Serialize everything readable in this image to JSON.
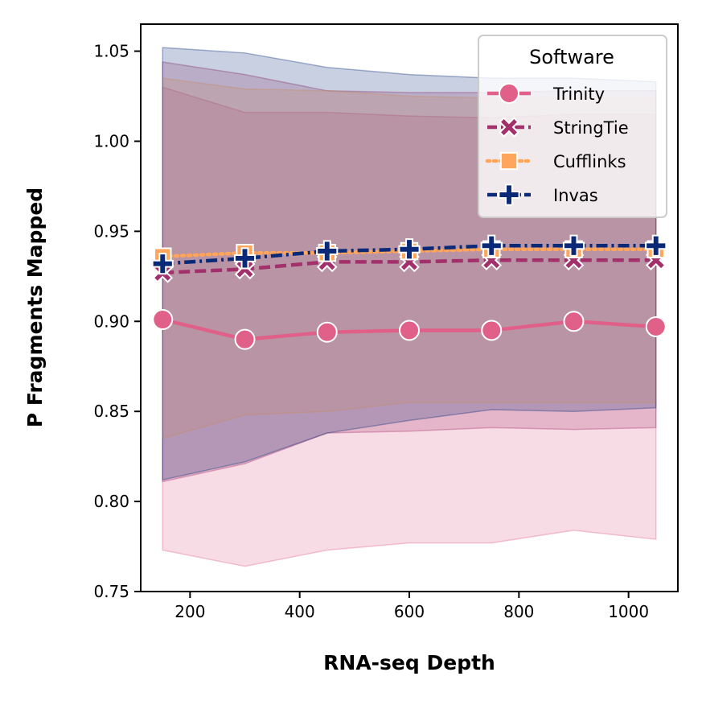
{
  "chart_data": {
    "type": "line",
    "title": "",
    "xlabel": "RNA-seq Depth",
    "ylabel": "P Fragments Mapped",
    "xlim": [
      110,
      1090
    ],
    "ylim": [
      0.75,
      1.065
    ],
    "xticks": [
      200,
      400,
      600,
      800,
      1000
    ],
    "yticks": [
      0.75,
      0.8,
      0.85,
      0.9,
      0.95,
      1.0,
      1.05
    ],
    "ytick_labels": [
      "0.75",
      "0.80",
      "0.85",
      "0.90",
      "0.95",
      "1.00",
      "1.05"
    ],
    "grid": false,
    "x": [
      150,
      300,
      450,
      600,
      750,
      900,
      1050
    ],
    "legend": {
      "title": "Software",
      "position": "top-right"
    },
    "series": [
      {
        "name": "Trinity",
        "color": "#e0608a",
        "marker": "circle",
        "linestyle": "solid",
        "values": [
          0.901,
          0.89,
          0.894,
          0.895,
          0.895,
          0.9,
          0.897
        ],
        "band_lower": [
          0.773,
          0.764,
          0.773,
          0.777,
          0.777,
          0.784,
          0.779
        ],
        "band_upper": [
          1.03,
          1.016,
          1.016,
          1.014,
          1.013,
          1.015,
          1.015
        ]
      },
      {
        "name": "StringTie",
        "color": "#a2306a",
        "marker": "x",
        "linestyle": "dashed",
        "values": [
          0.927,
          0.929,
          0.933,
          0.933,
          0.934,
          0.934,
          0.934
        ],
        "band_lower": [
          0.811,
          0.821,
          0.838,
          0.839,
          0.841,
          0.84,
          0.841
        ],
        "band_upper": [
          1.044,
          1.037,
          1.028,
          1.027,
          1.027,
          1.028,
          1.028
        ]
      },
      {
        "name": "Cufflinks",
        "color": "#ffa55c",
        "marker": "square",
        "linestyle": "dotted",
        "values": [
          0.936,
          0.938,
          0.938,
          0.939,
          0.94,
          0.94,
          0.94
        ],
        "band_lower": [
          0.835,
          0.848,
          0.85,
          0.855,
          0.855,
          0.855,
          0.855
        ],
        "band_upper": [
          1.035,
          1.029,
          1.028,
          1.025,
          1.024,
          1.024,
          1.024
        ]
      },
      {
        "name": "Invas",
        "color": "#0a2a78",
        "marker": "plus",
        "linestyle": "dashdot",
        "values": [
          0.932,
          0.935,
          0.939,
          0.94,
          0.942,
          0.942,
          0.942
        ],
        "band_lower": [
          0.812,
          0.822,
          0.838,
          0.845,
          0.851,
          0.85,
          0.852
        ],
        "band_upper": [
          1.052,
          1.049,
          1.041,
          1.037,
          1.035,
          1.035,
          1.033
        ]
      }
    ]
  }
}
